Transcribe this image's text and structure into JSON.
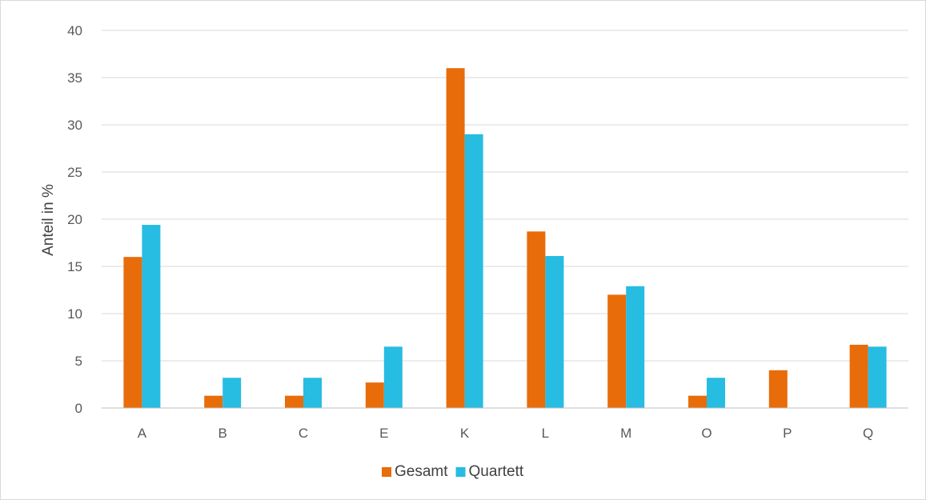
{
  "chart_data": {
    "type": "bar",
    "title": "",
    "xlabel": "",
    "ylabel": "Anteil in %",
    "ylim": [
      0,
      40
    ],
    "yticks": [
      0,
      5,
      10,
      15,
      20,
      25,
      30,
      35,
      40
    ],
    "grid": true,
    "legend_position": "bottom",
    "categories": [
      "A",
      "B",
      "C",
      "E",
      "K",
      "L",
      "M",
      "O",
      "P",
      "Q"
    ],
    "series": [
      {
        "name": "Gesamt",
        "color": "#E86C0A",
        "values": [
          16.0,
          1.3,
          1.3,
          2.7,
          36.0,
          18.7,
          12.0,
          1.3,
          4.0,
          6.7
        ]
      },
      {
        "name": "Quartett",
        "color": "#27BCE2",
        "values": [
          19.4,
          3.2,
          3.2,
          6.5,
          29.0,
          16.1,
          12.9,
          3.2,
          0,
          6.5
        ]
      }
    ]
  }
}
